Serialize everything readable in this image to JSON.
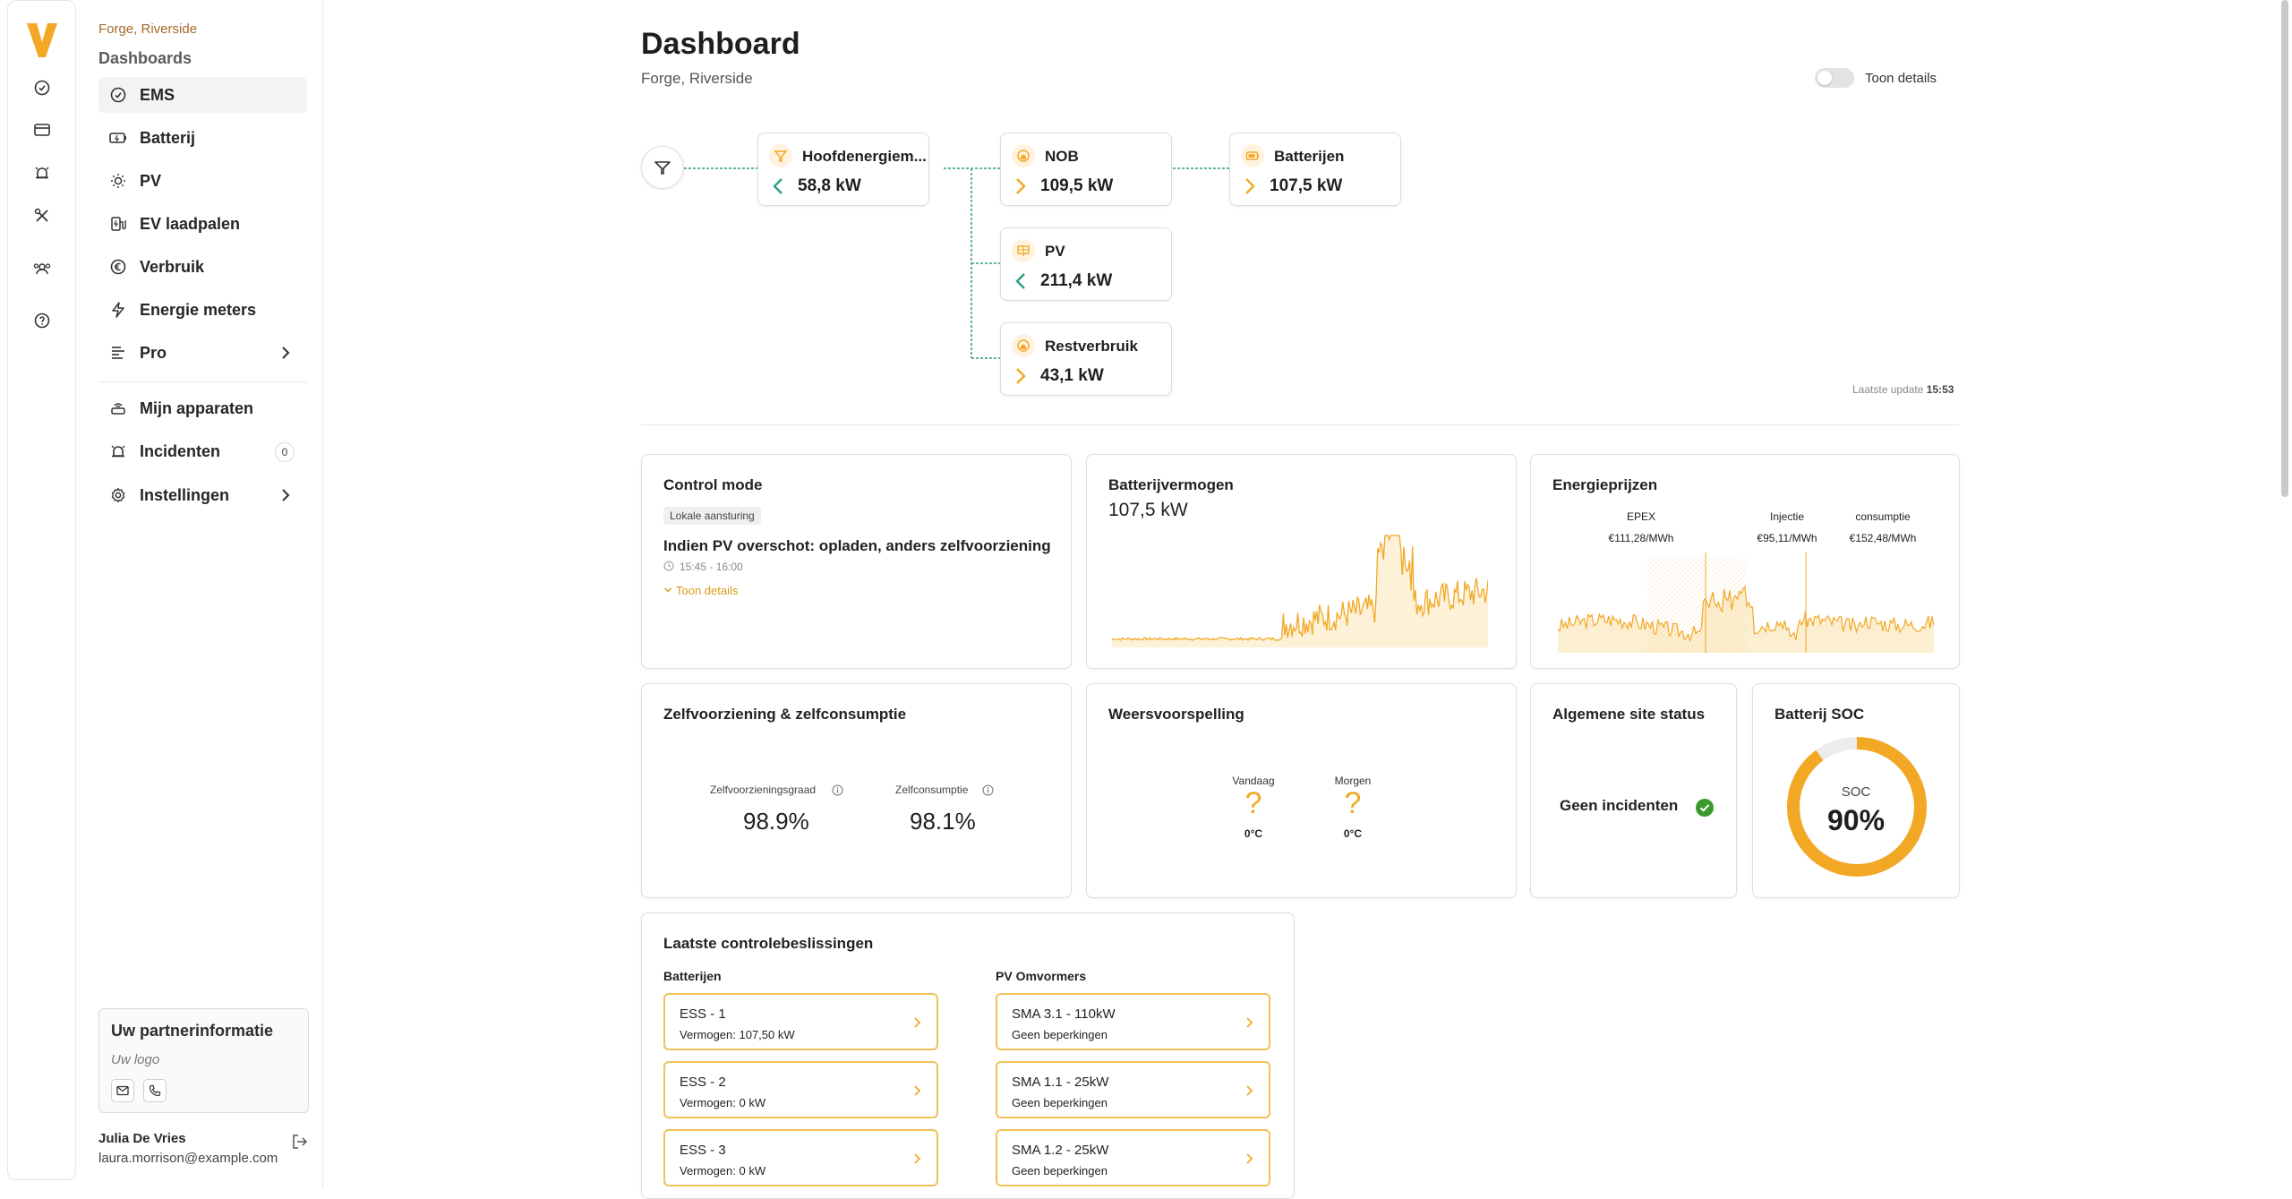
{
  "nav": {
    "site": "Forge, Riverside",
    "group": "Dashboards",
    "items": [
      {
        "label": "EMS",
        "icon": "gauge-icon"
      },
      {
        "label": "Batterij",
        "icon": "battery-icon"
      },
      {
        "label": "PV",
        "icon": "sun-icon"
      },
      {
        "label": "EV laadpalen",
        "icon": "ev-charger-icon"
      },
      {
        "label": "Verbruik",
        "icon": "euro-icon"
      },
      {
        "label": "Energie meters",
        "icon": "bolt-icon"
      },
      {
        "label": "Pro",
        "icon": "list-icon"
      }
    ],
    "secondary": [
      {
        "label": "Mijn apparaten",
        "icon": "devices-icon"
      },
      {
        "label": "Incidenten",
        "icon": "alarm-icon",
        "badge": "0"
      },
      {
        "label": "Instellingen",
        "icon": "gear-icon"
      }
    ],
    "partner": {
      "title": "Uw partnerinformatie",
      "logo": "Uw logo"
    },
    "user": {
      "name": "Julia De Vries",
      "email": "laura.morrison@example.com"
    }
  },
  "header": {
    "title": "Dashboard",
    "subtitle": "Forge, Riverside",
    "toggle_label": "Toon details"
  },
  "flow": {
    "nodes": [
      {
        "title": "Hoofdenergiem...",
        "value": "58,8 kW",
        "direction": "left"
      },
      {
        "title": "NOB",
        "value": "109,5 kW",
        "direction": "right"
      },
      {
        "title": "Batterijen",
        "value": "107,5 kW",
        "direction": "right"
      },
      {
        "title": "PV",
        "value": "211,4 kW",
        "direction": "left"
      },
      {
        "title": "Restverbruik",
        "value": "43,1 kW",
        "direction": "right"
      }
    ],
    "last_update_label": "Laatste update",
    "last_update_time": "15:53"
  },
  "control_mode": {
    "title": "Control mode",
    "tag": "Lokale aansturing",
    "text": "Indien PV overschot: opladen, anders zelfvoorziening",
    "time": "15:45 - 16:00",
    "details": "Toon details"
  },
  "battery_power": {
    "title": "Batterijvermogen",
    "value": "107,5 kW"
  },
  "energy_prices": {
    "title": "Energieprijzen",
    "labels": [
      {
        "name": "EPEX",
        "value": "€111,28/MWh"
      },
      {
        "name": "Injectie",
        "value": "€95,11/MWh"
      },
      {
        "name": "consumptie",
        "value": "€152,48/MWh"
      }
    ]
  },
  "self_sufficiency": {
    "title": "Zelfvoorziening & zelfconsumptie",
    "metrics": [
      {
        "label": "Zelfvoorzieningsgraad",
        "value": "98.9%"
      },
      {
        "label": "Zelfconsumptie",
        "value": "98.1%"
      }
    ]
  },
  "weather": {
    "title": "Weersvoorspelling",
    "days": [
      {
        "label": "Vandaag",
        "symbol": "?",
        "temp": "0°C"
      },
      {
        "label": "Morgen",
        "symbol": "?",
        "temp": "0°C"
      }
    ]
  },
  "site_status": {
    "title": "Algemene site status",
    "text": "Geen incidenten"
  },
  "battery_soc": {
    "title": "Batterij SOC",
    "label": "SOC",
    "value": "90%",
    "fraction": 0.9
  },
  "decisions": {
    "title": "Laatste controlebeslissingen",
    "batteries_title": "Batterijen",
    "pv_title": "PV Omvormers",
    "batteries": [
      {
        "name": "ESS - 1",
        "detail": "Vermogen: 107,50 kW"
      },
      {
        "name": "ESS - 2",
        "detail": "Vermogen: 0 kW"
      },
      {
        "name": "ESS - 3",
        "detail": "Vermogen: 0 kW"
      }
    ],
    "pv": [
      {
        "name": "SMA 3.1 - 110kW",
        "detail": "Geen beperkingen"
      },
      {
        "name": "SMA 1.1 - 25kW",
        "detail": "Geen beperkingen"
      },
      {
        "name": "SMA 1.2 - 25kW",
        "detail": "Geen beperkingen"
      }
    ]
  },
  "colors": {
    "accent": "#f2a825",
    "flow_line": "#2f9c86",
    "ok": "#3a9a2c"
  }
}
